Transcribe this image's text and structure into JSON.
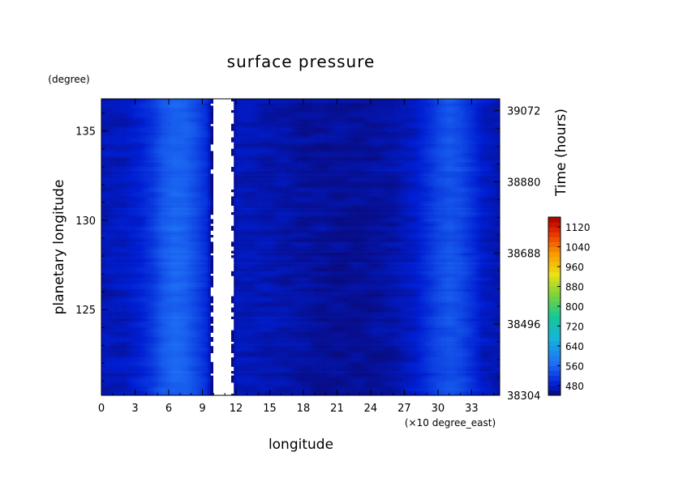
{
  "chart_data": {
    "type": "heatmap",
    "title": "surface pressure",
    "xlabel": "longitude",
    "x_unit_label": "(×10 degree_east)",
    "ylabel": "planetary longitude",
    "y_unit_label": "(degree)",
    "right_axis_label": "Time (hours)",
    "xlim": [
      0,
      35.5
    ],
    "ylim": [
      120.2,
      136.8
    ],
    "x_ticks": [
      0,
      3,
      6,
      9,
      12,
      15,
      18,
      21,
      24,
      27,
      30,
      33
    ],
    "x_tick_labels": [
      "0",
      "3",
      "6",
      "9",
      "12",
      "15",
      "18",
      "21",
      "24",
      "27",
      "30",
      "33"
    ],
    "y_ticks": [
      125,
      130,
      135
    ],
    "y_tick_labels": [
      "125",
      "130",
      "135"
    ],
    "right_ticks": [
      38304,
      38496,
      38688,
      38880,
      39072
    ],
    "right_tick_labels": [
      "38304",
      "38496",
      "38688",
      "38880",
      "39072"
    ],
    "right_lim": [
      38304,
      39104
    ],
    "colorbar": {
      "min": 440,
      "max": 1160,
      "tick_values": [
        480,
        560,
        640,
        720,
        800,
        880,
        960,
        1040,
        1120
      ],
      "tick_labels": [
        "480",
        "560",
        "640",
        "720",
        "800",
        "880",
        "960",
        "1040",
        "1120"
      ]
    },
    "white_meaning": "below 440 (not colored)",
    "profile": {
      "x": [
        0,
        2,
        3.5,
        4.5,
        5.5,
        6.5,
        7.5,
        8.5,
        9.5,
        10,
        11.5,
        12,
        14,
        16,
        18,
        20,
        22,
        24,
        26,
        28,
        29,
        30,
        31,
        32,
        33,
        34,
        35.5
      ],
      "value": [
        470,
        472,
        488,
        510,
        545,
        560,
        555,
        530,
        495,
        420,
        420,
        472,
        470,
        465,
        458,
        455,
        455,
        456,
        462,
        478,
        500,
        525,
        540,
        530,
        505,
        478,
        468
      ]
    }
  }
}
